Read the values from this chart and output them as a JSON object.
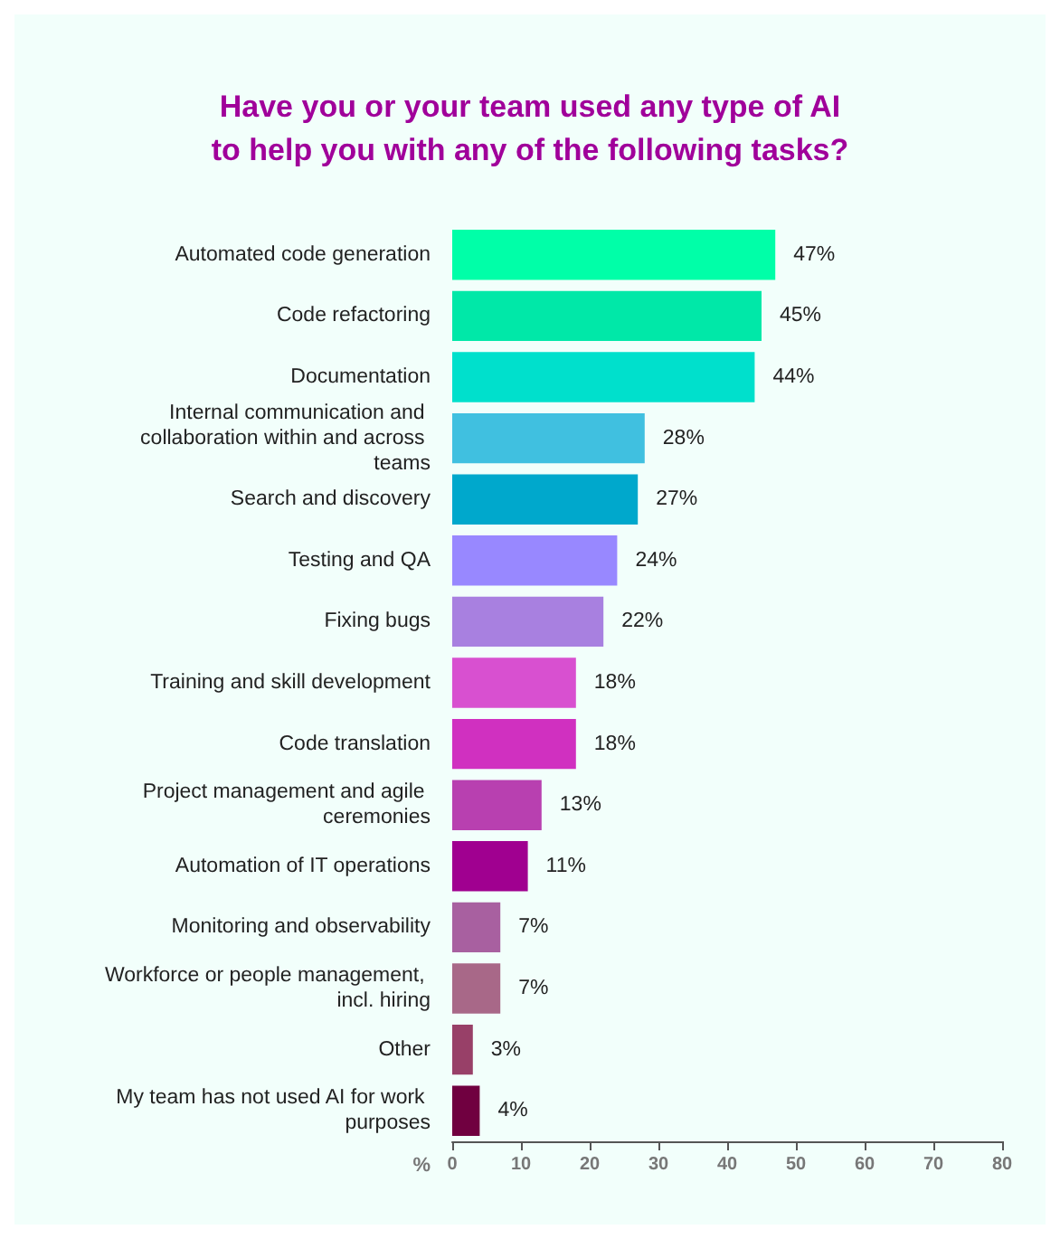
{
  "chart_data": {
    "type": "bar",
    "orientation": "horizontal",
    "title": "Have you or your team used any type of AI\nto help you with any of the following tasks?",
    "xlabel": "%",
    "categories": [
      "Automated code generation",
      "Code refactoring",
      "Documentation",
      "Internal communication and collaboration within and across teams",
      "Search and discovery",
      "Testing and QA",
      "Fixing bugs",
      "Training and skill development",
      "Code translation",
      "Project management and agile ceremonies",
      "Automation of IT operations",
      "Monitoring and observability",
      "Workforce or people management, incl. hiring",
      "Other",
      "My team has not used AI for work purposes"
    ],
    "values": [
      47,
      45,
      44,
      28,
      27,
      24,
      22,
      18,
      18,
      13,
      11,
      7,
      7,
      3,
      4
    ],
    "value_labels": [
      "47%",
      "45%",
      "44%",
      "28%",
      "27%",
      "24%",
      "22%",
      "18%",
      "18%",
      "13%",
      "11%",
      "7%",
      "7%",
      "3%",
      "4%"
    ],
    "colors": [
      "#00ffa8",
      "#00e8a8",
      "#00e0cc",
      "#40c0e0",
      "#00a8cc",
      "#9888ff",
      "#a880e0",
      "#d850d0",
      "#d030c0",
      "#b840b0",
      "#a00090",
      "#a860a0",
      "#a86888",
      "#984068",
      "#700040"
    ],
    "xlim": [
      0,
      80
    ],
    "xticks": [
      0,
      10,
      20,
      30,
      40,
      50,
      60,
      70,
      80
    ],
    "grid": false
  }
}
